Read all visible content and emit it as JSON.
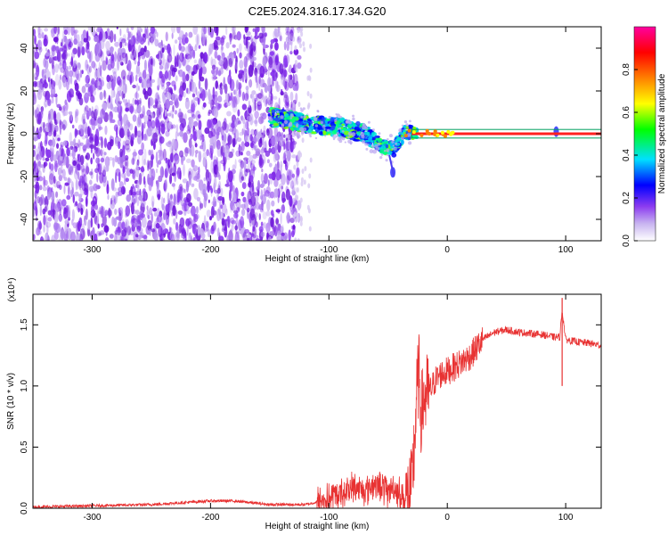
{
  "page": {
    "title": "C2E5.2024.316.17.34.G20"
  },
  "chart_data": [
    {
      "type": "heatmap",
      "xlabel": "Height of straight line (km)",
      "ylabel": "Frequency (Hz)",
      "xlim": [
        -350,
        130
      ],
      "ylim": [
        -50,
        50
      ],
      "x_ticks": [
        -300,
        -200,
        -100,
        0,
        100
      ],
      "y_ticks": [
        -40,
        -20,
        0,
        20,
        40
      ],
      "colorbar": {
        "label": "Normalized spectral amplitude",
        "range": [
          0,
          1
        ],
        "ticks": [
          "0.0",
          "0.2",
          "0.4",
          "0.6",
          "0.8"
        ],
        "colors": [
          "#ffffff",
          "#8c3cf0",
          "#0000ff",
          "#00e0ff",
          "#00ff00",
          "#ffff00",
          "#ff8000",
          "#ff0000",
          "#ff00a0"
        ]
      },
      "noise_region": {
        "x": [
          -350,
          -125
        ],
        "amplitude": 0.15,
        "edge_color": "#d7c8f2"
      },
      "trace": [
        {
          "x": -150,
          "y": 8
        },
        {
          "x": -130,
          "y": 6
        },
        {
          "x": -110,
          "y": 4
        },
        {
          "x": -90,
          "y": 3
        },
        {
          "x": -70,
          "y": 0
        },
        {
          "x": -55,
          "y": -6
        },
        {
          "x": -45,
          "y": -7
        },
        {
          "x": -35,
          "y": 1
        },
        {
          "x": -20,
          "y": 0
        },
        {
          "x": 0,
          "y": 0
        },
        {
          "x": 130,
          "y": 0
        }
      ],
      "drop_features": [
        {
          "x": -46,
          "y": -18
        },
        {
          "x": 92,
          "y": 1
        }
      ],
      "carrier": {
        "x_start": -30,
        "x_end": 130,
        "y": 0,
        "band_hz": 2,
        "colors": [
          "#00a060",
          "#ff2020"
        ]
      }
    },
    {
      "type": "line",
      "xlabel": "Height of straight line (km)",
      "ylabel": "SNR (10 * v/v)",
      "multiplier_label": "(x10⁴)",
      "xlim": [
        -350,
        130
      ],
      "ylim": [
        0,
        1.75
      ],
      "x_ticks": [
        -300,
        -200,
        -100,
        0,
        100
      ],
      "y_ticks": [
        "0.0",
        "0.5",
        "1.0",
        "1.5"
      ],
      "color": "#e83232",
      "series": [
        {
          "x": [
            -350,
            -300,
            -250,
            -200,
            -180,
            -150,
            -120,
            -100,
            -90,
            -80,
            -70,
            -60,
            -50,
            -45,
            -40,
            -35,
            -30,
            -28,
            -26,
            -24,
            -22,
            -20,
            -15,
            -10,
            -5,
            0,
            10,
            20,
            30,
            40,
            50,
            60,
            70,
            80,
            90,
            95,
            97,
            100,
            110,
            120,
            130
          ],
          "values": [
            0.01,
            0.02,
            0.03,
            0.06,
            0.06,
            0.03,
            0.03,
            0.07,
            0.12,
            0.17,
            0.15,
            0.2,
            0.14,
            0.18,
            0.12,
            0.07,
            0.15,
            0.48,
            0.9,
            1.1,
            0.75,
            0.9,
            0.95,
            1.05,
            1.1,
            1.12,
            1.18,
            1.25,
            1.38,
            1.44,
            1.46,
            1.44,
            1.43,
            1.42,
            1.4,
            1.4,
            1.62,
            1.38,
            1.36,
            1.35,
            1.33
          ]
        }
      ]
    }
  ]
}
